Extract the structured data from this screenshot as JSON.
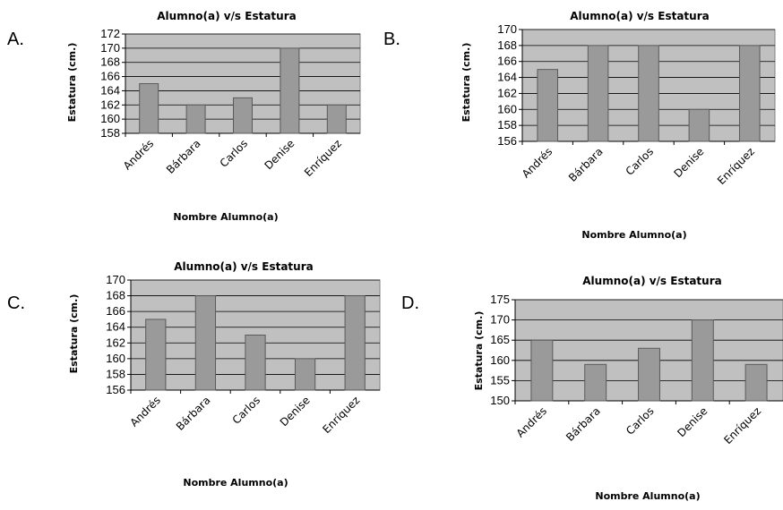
{
  "colors": {
    "plot_background": "#c0c0c0",
    "bar_fill": "#9a9a9a",
    "bar_stroke": "#5a5a5a",
    "gridline": "#000000"
  },
  "chart_data": [
    {
      "panel": "A.",
      "type": "bar",
      "title": "Alumno(a) v/s Estatura",
      "xlabel": "Nombre Alumno(a)",
      "ylabel": "Estatura (cm.)",
      "categories": [
        "Andrés",
        "Bárbara",
        "Carlos",
        "Denise",
        "Enríquez"
      ],
      "values": [
        165,
        162,
        163,
        170,
        162
      ],
      "ylim": [
        158,
        172
      ],
      "yticks": [
        158,
        160,
        162,
        164,
        166,
        168,
        170,
        172
      ],
      "grid": true,
      "legend": "none"
    },
    {
      "panel": "B.",
      "type": "bar",
      "title": "Alumno(a) v/s Estatura",
      "xlabel": "Nombre Alumno(a)",
      "ylabel": "Estatura (cm.)",
      "categories": [
        "Andrés",
        "Bárbara",
        "Carlos",
        "Denise",
        "Enríquez"
      ],
      "values": [
        165,
        168,
        168,
        160,
        168
      ],
      "ylim": [
        156,
        170
      ],
      "yticks": [
        156,
        158,
        160,
        162,
        164,
        166,
        168,
        170
      ],
      "grid": true,
      "legend": "none"
    },
    {
      "panel": "C.",
      "type": "bar",
      "title": "Alumno(a) v/s Estatura",
      "xlabel": "Nombre Alumno(a)",
      "ylabel": "Estatura (cm.)",
      "categories": [
        "Andrés",
        "Bárbara",
        "Carlos",
        "Denise",
        "Enríquez"
      ],
      "values": [
        165,
        168,
        163,
        160,
        168
      ],
      "ylim": [
        156,
        170
      ],
      "yticks": [
        156,
        158,
        160,
        162,
        164,
        166,
        168,
        170
      ],
      "grid": true,
      "legend": "none"
    },
    {
      "panel": "D.",
      "type": "bar",
      "title": "Alumno(a) v/s Estatura",
      "xlabel": "Nombre Alumno(a)",
      "ylabel": "Estatura (cm.)",
      "categories": [
        "Andrés",
        "Bárbara",
        "Carlos",
        "Denise",
        "Enríquez"
      ],
      "values": [
        165,
        159,
        163,
        170,
        159
      ],
      "ylim": [
        150,
        175
      ],
      "yticks": [
        150,
        155,
        160,
        165,
        170,
        175
      ],
      "grid": true,
      "legend": "none"
    }
  ]
}
